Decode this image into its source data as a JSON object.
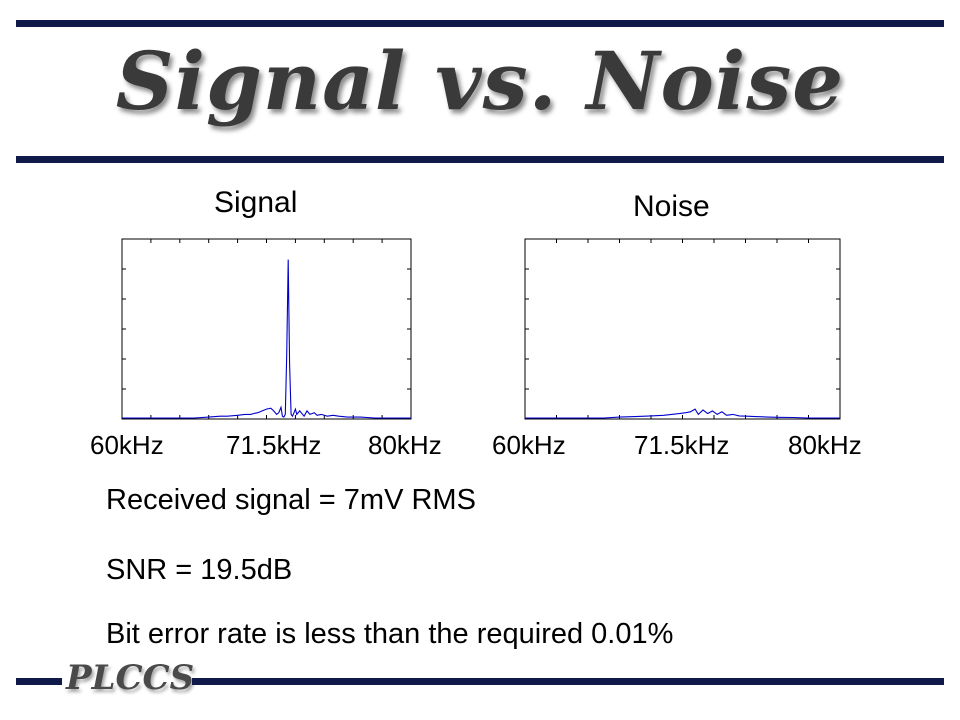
{
  "slide": {
    "title": "Signal vs. Noise",
    "lines": [
      "Received signal = 7mV RMS",
      "SNR = 19.5dB",
      "Bit error rate is less than the required 0.01%"
    ],
    "footer_logo": "PLCCS"
  },
  "chart_data": [
    {
      "type": "line",
      "title": "Signal",
      "xlabel": "",
      "ylabel": "",
      "x_ticks": [
        "60kHz",
        "71.5kHz",
        "80kHz"
      ],
      "xlim": [
        60,
        80
      ],
      "ylim": [
        0,
        1
      ],
      "grid": false,
      "line_color": "#0000cc",
      "series": [
        {
          "x": [
            60,
            65,
            66,
            66.8,
            67.3,
            68,
            68.5,
            68.9,
            69.1,
            69.4,
            69.7,
            70,
            70.3,
            70.5,
            70.7,
            70.85,
            71,
            71.1,
            71.2,
            71.3,
            71.4,
            71.5,
            71.6,
            71.7,
            71.8,
            71.9,
            72,
            72.1,
            72.3,
            72.6,
            72.8,
            73,
            73.3,
            73.5,
            73.8,
            74.2,
            74.6,
            75,
            75.6,
            76.5,
            77.5,
            80
          ],
          "y": [
            0,
            0,
            0.005,
            0.01,
            0.01,
            0.015,
            0.02,
            0.02,
            0.025,
            0.03,
            0.04,
            0.05,
            0.055,
            0.04,
            0.02,
            0.03,
            0.06,
            0.01,
            0.005,
            0.02,
            0.35,
            0.89,
            0.3,
            0.02,
            0.01,
            0.03,
            0.05,
            0.02,
            0.04,
            0.01,
            0.04,
            0.02,
            0.03,
            0.015,
            0.02,
            0.01,
            0.015,
            0.01,
            0.005,
            0.005,
            0,
            0
          ]
        }
      ]
    },
    {
      "type": "line",
      "title": "Noise",
      "xlabel": "",
      "ylabel": "",
      "x_ticks": [
        "60kHz",
        "71.5kHz",
        "80kHz"
      ],
      "xlim": [
        60,
        80
      ],
      "ylim": [
        0,
        1
      ],
      "grid": false,
      "line_color": "#0000cc",
      "series": [
        {
          "x": [
            60,
            65,
            66,
            67,
            68,
            68.8,
            69.3,
            69.8,
            70.2,
            70.5,
            70.8,
            71,
            71.3,
            71.6,
            71.9,
            72.2,
            72.5,
            72.8,
            73.2,
            73.6,
            74.1,
            74.6,
            75.2,
            76,
            77,
            78,
            80
          ],
          "y": [
            0,
            0,
            0.005,
            0.008,
            0.012,
            0.015,
            0.02,
            0.025,
            0.03,
            0.035,
            0.05,
            0.02,
            0.045,
            0.025,
            0.04,
            0.02,
            0.035,
            0.015,
            0.02,
            0.012,
            0.01,
            0.008,
            0.006,
            0.004,
            0.003,
            0,
            0
          ]
        }
      ]
    }
  ]
}
